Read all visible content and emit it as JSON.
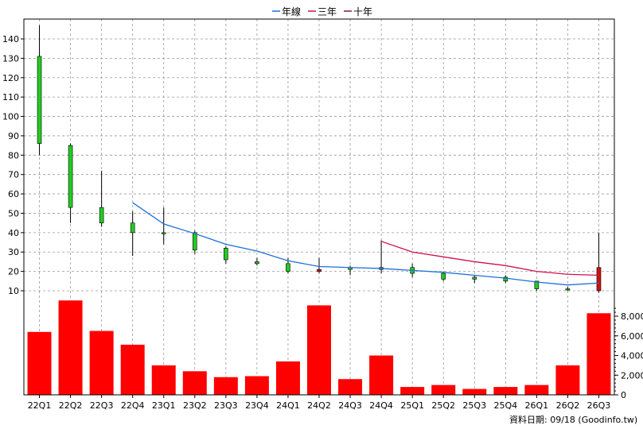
{
  "chart_data": {
    "type": "candlestick",
    "legend": [
      {
        "name": "年線",
        "color": "#1e6fd9"
      },
      {
        "name": "三年",
        "color": "#d0104c"
      },
      {
        "name": "十年",
        "color": "#7a1a4a"
      }
    ],
    "categories": [
      "22Q1",
      "22Q2",
      "22Q3",
      "22Q4",
      "23Q1",
      "23Q2",
      "23Q3",
      "23Q4",
      "24Q1",
      "24Q2",
      "24Q3",
      "24Q4",
      "25Q1",
      "25Q2",
      "25Q3",
      "25Q4",
      "26Q1",
      "26Q2",
      "26Q3"
    ],
    "price_axis": {
      "ticks": [
        10,
        20,
        30,
        40,
        50,
        60,
        70,
        80,
        90,
        100,
        110,
        120,
        130,
        140
      ],
      "range": [
        5,
        148
      ]
    },
    "candles": [
      {
        "open": 86,
        "high": 147,
        "low": 80,
        "close": 131
      },
      {
        "open": 53,
        "high": 86,
        "low": 45,
        "close": 85
      },
      {
        "open": 45,
        "high": 72,
        "low": 43,
        "close": 53
      },
      {
        "open": 40,
        "high": 51,
        "low": 28,
        "close": 45
      },
      {
        "open": 40,
        "high": 53,
        "low": 34,
        "close": 40
      },
      {
        "open": 31,
        "high": 41,
        "low": 29,
        "close": 40
      },
      {
        "open": 26,
        "high": 33,
        "low": 24,
        "close": 32
      },
      {
        "open": 24,
        "high": 27,
        "low": 23,
        "close": 25
      },
      {
        "open": 20,
        "high": 27,
        "low": 19,
        "close": 24
      },
      {
        "open": 21,
        "high": 27,
        "low": 19,
        "close": 20
      },
      {
        "open": 21,
        "high": 23,
        "low": 18,
        "close": 22
      },
      {
        "open": 21,
        "high": 36,
        "low": 19,
        "close": 22
      },
      {
        "open": 19,
        "high": 24,
        "low": 17,
        "close": 22
      },
      {
        "open": 16,
        "high": 20,
        "low": 15,
        "close": 19
      },
      {
        "open": 16,
        "high": 18,
        "low": 14,
        "close": 17
      },
      {
        "open": 15,
        "high": 18,
        "low": 14,
        "close": 17
      },
      {
        "open": 11,
        "high": 15,
        "low": 10,
        "close": 15
      },
      {
        "open": 11,
        "high": 12,
        "low": 10,
        "close": 11
      },
      {
        "open": 22,
        "high": 40,
        "low": 9,
        "close": 10
      }
    ],
    "ma_year": {
      "name": "年線",
      "start_index": 3,
      "values": [
        55.5,
        44.5,
        39.5,
        34,
        30.5,
        25.5,
        22.5,
        22,
        21.5,
        20.5,
        19.5,
        18,
        16.5,
        14.5,
        13,
        14
      ]
    },
    "ma_3year": {
      "name": "三年",
      "start_index": 11,
      "values": [
        35.5,
        30,
        27.5,
        25,
        23,
        20,
        18.5,
        18
      ]
    },
    "volume_axis": {
      "ticks": [
        0,
        2000,
        4000,
        6000,
        8000
      ],
      "labels": [
        "0",
        "2,000",
        "4,000",
        "6,000",
        "8,000"
      ],
      "range": [
        0,
        9400
      ]
    },
    "volume": [
      6400,
      9600,
      6500,
      5100,
      3000,
      2400,
      1800,
      1900,
      3400,
      9100,
      1600,
      4000,
      800,
      1000,
      600,
      800,
      1000,
      3000,
      8300
    ],
    "source_text": "資料日期: 09/18 (Goodinfo.tw)",
    "colors": {
      "up": "#22cc22",
      "down": "#d01010",
      "volume": "#ff0000",
      "grid": "#999999"
    }
  }
}
